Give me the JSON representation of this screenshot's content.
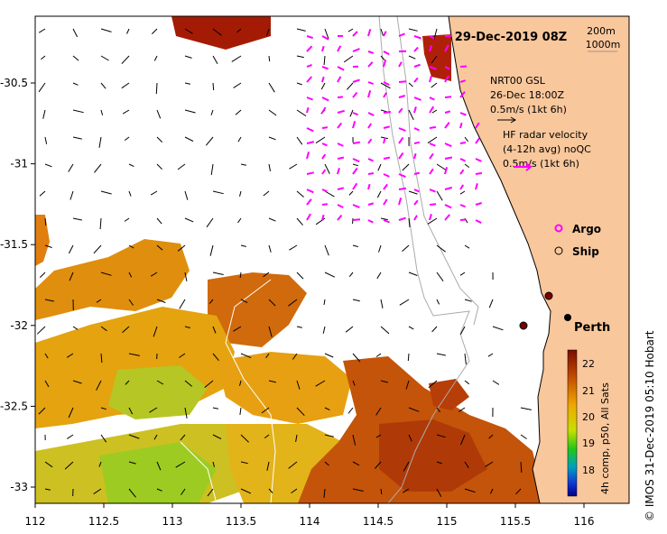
{
  "map": {
    "date_title": "29-Dec-2019 08Z",
    "isobath_labels": [
      "200m",
      "1000m"
    ],
    "gsl_block": {
      "line1": "NRT00 GSL",
      "line2": "26-Dec 18:00Z",
      "line3": "0.5m/s (1kt 6h)"
    },
    "hf_block": {
      "line1": "HF radar velocity",
      "line2": "(4-12h avg) noQC",
      "line3": "0.5m/s (1kt 6h)"
    },
    "legend": {
      "argo": "Argo",
      "ship": "Ship"
    },
    "city": "Perth",
    "colorbar": {
      "ticks": [
        "22",
        "21",
        "20",
        "19",
        "18"
      ],
      "label": "4h comp, p50, All Sats"
    },
    "credit": "© IMOS 31-Dec-2019 05:10 Hobart",
    "x_ticks": [
      "112",
      "112.5",
      "113",
      "113.5",
      "114",
      "114.5",
      "115",
      "115.5",
      "116"
    ],
    "y_ticks": [
      "-30.5",
      "-31",
      "-31.5",
      "-32",
      "-32.5",
      "-33"
    ],
    "colors": {
      "land": "#f9c79c",
      "hf_arrow": "#ff00ff",
      "argo_marker": "#ff00ff"
    }
  }
}
